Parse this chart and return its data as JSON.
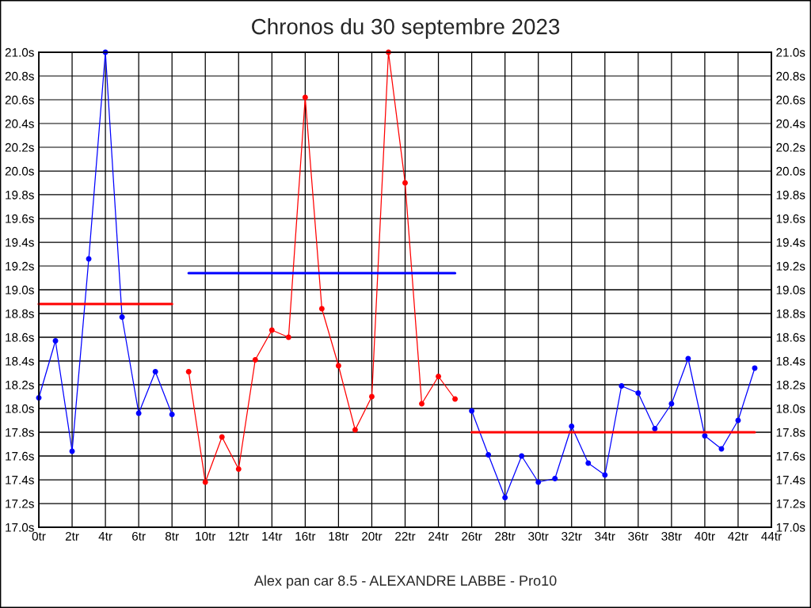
{
  "chart_data": {
    "type": "line",
    "title": "Chronos du 30 septembre 2023",
    "annotations": [
      "Alex pan car 8.5 - ALEXANDRE LABBE - Pro10"
    ],
    "series": [
      {
        "color": "#0000ff",
        "x": [
          0,
          1,
          2,
          3,
          4,
          5,
          6,
          7,
          8
        ],
        "values": [
          18.09,
          18.57,
          17.64,
          19.26,
          21.0,
          18.77,
          17.96,
          18.31,
          17.95
        ]
      },
      {
        "color": "#ff0000",
        "x": [
          9,
          10,
          11,
          12,
          13,
          14,
          15,
          16,
          17,
          18,
          19,
          20,
          21,
          22,
          23,
          24,
          25
        ],
        "values": [
          18.31,
          17.38,
          17.76,
          17.49,
          18.41,
          18.66,
          18.6,
          20.62,
          18.84,
          18.36,
          17.82,
          18.1,
          21.0,
          19.9,
          18.04,
          18.27,
          18.08
        ]
      },
      {
        "color": "#0000ff",
        "x": [
          26,
          27,
          28,
          29,
          30,
          31,
          32,
          33,
          34,
          35,
          36,
          37,
          38,
          39,
          40,
          41,
          42,
          43
        ],
        "values": [
          17.98,
          17.61,
          17.25,
          17.6,
          17.38,
          17.41,
          17.85,
          17.54,
          17.44,
          18.19,
          18.13,
          17.83,
          18.04,
          18.42,
          17.77,
          17.66,
          17.9,
          18.34
        ]
      },
      {
        "type": "line",
        "marker": "none",
        "color": "#ff0000",
        "x": [
          0,
          8
        ],
        "values": [
          18.88,
          18.88
        ]
      },
      {
        "type": "line",
        "marker": "none",
        "color": "#0000ff",
        "x": [
          9,
          25
        ],
        "values": [
          19.14,
          19.14
        ]
      },
      {
        "type": "line",
        "marker": "none",
        "color": "#ff0000",
        "x": [
          26,
          43
        ],
        "values": [
          17.8,
          17.8
        ]
      }
    ],
    "xlim": [
      0,
      44
    ],
    "xticks": [
      {
        "value": 0,
        "label": "0tr"
      },
      {
        "value": 2,
        "label": "2tr"
      },
      {
        "value": 4,
        "label": "4tr"
      },
      {
        "value": 6,
        "label": "6tr"
      },
      {
        "value": 8,
        "label": "8tr"
      },
      {
        "value": 10,
        "label": "10tr"
      },
      {
        "value": 12,
        "label": "12tr"
      },
      {
        "value": 14,
        "label": "14tr"
      },
      {
        "value": 16,
        "label": "16tr"
      },
      {
        "value": 18,
        "label": "18tr"
      },
      {
        "value": 20,
        "label": "20tr"
      },
      {
        "value": 22,
        "label": "22tr"
      },
      {
        "value": 24,
        "label": "24tr"
      },
      {
        "value": 26,
        "label": "26tr"
      },
      {
        "value": 28,
        "label": "28tr"
      },
      {
        "value": 30,
        "label": "30tr"
      },
      {
        "value": 32,
        "label": "32tr"
      },
      {
        "value": 34,
        "label": "34tr"
      },
      {
        "value": 36,
        "label": "36tr"
      },
      {
        "value": 38,
        "label": "38tr"
      },
      {
        "value": 40,
        "label": "40tr"
      },
      {
        "value": 42,
        "label": "42tr"
      },
      {
        "value": 44,
        "label": "44tr"
      }
    ],
    "ylim": [
      17.0,
      21.0
    ],
    "yticks": [
      {
        "value": 17.0,
        "label": "17.0s"
      },
      {
        "value": 17.2,
        "label": "17.2s"
      },
      {
        "value": 17.4,
        "label": "17.4s"
      },
      {
        "value": 17.6,
        "label": "17.6s"
      },
      {
        "value": 17.8,
        "label": "17.8s"
      },
      {
        "value": 18.0,
        "label": "18.0s"
      },
      {
        "value": 18.2,
        "label": "18.2s"
      },
      {
        "value": 18.4,
        "label": "18.4s"
      },
      {
        "value": 18.6,
        "label": "18.6s"
      },
      {
        "value": 18.8,
        "label": "18.8s"
      },
      {
        "value": 19.0,
        "label": "19.0s"
      },
      {
        "value": 19.2,
        "label": "19.2s"
      },
      {
        "value": 19.4,
        "label": "19.4s"
      },
      {
        "value": 19.6,
        "label": "19.6s"
      },
      {
        "value": 19.8,
        "label": "19.8s"
      },
      {
        "value": 20.0,
        "label": "20.0s"
      },
      {
        "value": 20.2,
        "label": "20.2s"
      },
      {
        "value": 20.4,
        "label": "20.4s"
      },
      {
        "value": 20.6,
        "label": "20.6s"
      },
      {
        "value": 20.8,
        "label": "20.8s"
      },
      {
        "value": 21.0,
        "label": "21.0s"
      }
    ],
    "y2lim": [
      17.0,
      21.0
    ],
    "y2ticks": [
      {
        "value": 17.0,
        "label": "17.0s"
      },
      {
        "value": 17.2,
        "label": "17.2s"
      },
      {
        "value": 17.4,
        "label": "17.4s"
      },
      {
        "value": 17.6,
        "label": "17.6s"
      },
      {
        "value": 17.8,
        "label": "17.8s"
      },
      {
        "value": 18.0,
        "label": "18.0s"
      },
      {
        "value": 18.2,
        "label": "18.2s"
      },
      {
        "value": 18.4,
        "label": "18.4s"
      },
      {
        "value": 18.6,
        "label": "18.6s"
      },
      {
        "value": 18.8,
        "label": "18.8s"
      },
      {
        "value": 19.0,
        "label": "19.0s"
      },
      {
        "value": 19.2,
        "label": "19.2s"
      },
      {
        "value": 19.4,
        "label": "19.4s"
      },
      {
        "value": 19.6,
        "label": "19.6s"
      },
      {
        "value": 19.8,
        "label": "19.8s"
      },
      {
        "value": 20.0,
        "label": "20.0s"
      },
      {
        "value": 20.2,
        "label": "20.2s"
      },
      {
        "value": 20.4,
        "label": "20.4s"
      },
      {
        "value": 20.6,
        "label": "20.6s"
      },
      {
        "value": 20.8,
        "label": "20.8s"
      },
      {
        "value": 21.0,
        "label": "21.0s"
      }
    ],
    "grid": true,
    "marker": "circle",
    "line_style": "solid"
  }
}
